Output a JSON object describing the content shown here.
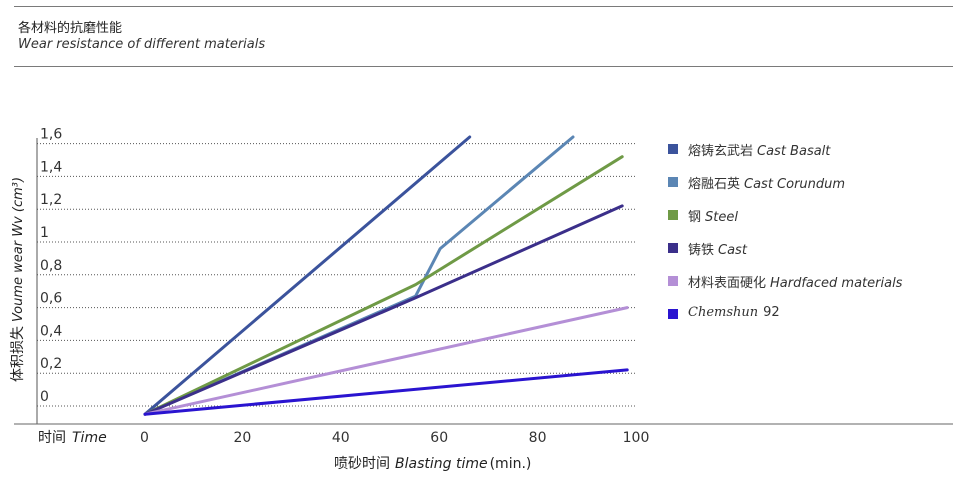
{
  "header": {
    "title": "各材料的抗磨性能",
    "subtitle": "Wear resistance of different materials"
  },
  "chart_data": {
    "type": "line",
    "y_axis": {
      "label_cn": "体积损失",
      "label_en": "Voume wear Wv (cm³)",
      "ticks": [
        "0",
        "0,2",
        "0,4",
        "0,6",
        "0,8",
        "1",
        "1,2",
        "1,4",
        "1,6"
      ],
      "ylim": [
        0,
        1.6
      ]
    },
    "x_axis": {
      "row_label_cn": "时间",
      "row_label_en": "Time",
      "ticks": [
        "0",
        "20",
        "40",
        "60",
        "80",
        "100"
      ],
      "label_cn": "喷砂时间",
      "label_en": "Blasting time",
      "unit": "(min.)",
      "xlim": [
        0,
        100
      ]
    },
    "grid": "horizontal dotted",
    "legend_position": "right",
    "series": [
      {
        "name_cn": "熔铸玄武岩",
        "name_en": "Cast Basalt",
        "color": "#3b539c",
        "points": [
          [
            0,
            -0.05
          ],
          [
            66,
            1.64
          ]
        ]
      },
      {
        "name_cn": "熔融石英",
        "name_en": "Cast Corundum",
        "color": "#5b86b4",
        "points": [
          [
            0,
            -0.05
          ],
          [
            55,
            0.67
          ],
          [
            60,
            0.96
          ],
          [
            87,
            1.64
          ]
        ]
      },
      {
        "name_cn": "钢",
        "name_en": "Steel",
        "color": "#6f9a46",
        "points": [
          [
            0,
            -0.05
          ],
          [
            55,
            0.74
          ],
          [
            97,
            1.52
          ]
        ]
      },
      {
        "name_cn": "铸铁",
        "name_en": "Cast",
        "color": "#3b2f8a",
        "points": [
          [
            0,
            -0.05
          ],
          [
            55,
            0.66
          ],
          [
            97,
            1.22
          ]
        ]
      },
      {
        "name_cn": "材料表面硬化",
        "name_en": "Hardfaced materials",
        "color": "#b48fd6",
        "points": [
          [
            0,
            -0.05
          ],
          [
            98,
            0.6
          ]
        ]
      },
      {
        "brand": "Chemshun",
        "number": "92",
        "color": "#2a14d0",
        "points": [
          [
            0,
            -0.05
          ],
          [
            98,
            0.22
          ]
        ]
      }
    ]
  }
}
